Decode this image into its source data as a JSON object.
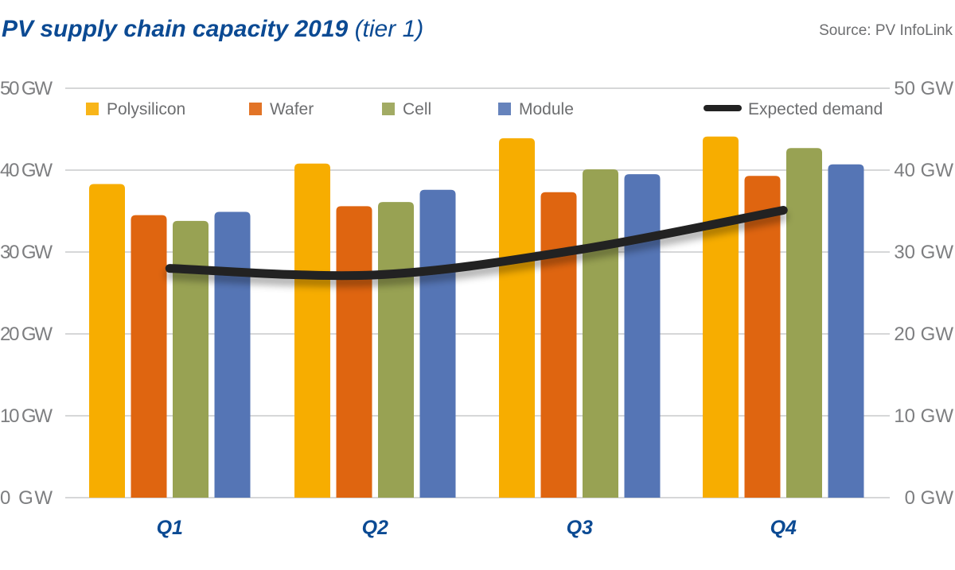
{
  "chart_data": {
    "type": "bar",
    "title": "PV supply chain capacity 2019",
    "subtitle": "(tier 1)",
    "source": "Source: PV InfoLink",
    "categories": [
      "Q1",
      "Q2",
      "Q3",
      "Q4"
    ],
    "ylim": [
      0,
      50
    ],
    "yticks": [
      "0 GW",
      "10 GW",
      "20 GW",
      "30 GW",
      "40 GW",
      "50 GW"
    ],
    "ytick_values": [
      0,
      10,
      20,
      30,
      40,
      50
    ],
    "unit": "GW",
    "grid": true,
    "legend_placement": "top",
    "series": [
      {
        "name": "Polysilicon",
        "color": "#f7ad00",
        "values": [
          38.3,
          40.8,
          43.9,
          44.1
        ]
      },
      {
        "name": "Wafer",
        "color": "#df6510",
        "values": [
          34.5,
          35.6,
          37.3,
          39.3
        ]
      },
      {
        "name": "Cell",
        "color": "#98a253",
        "values": [
          33.8,
          36.1,
          40.1,
          42.7
        ]
      },
      {
        "name": "Module",
        "color": "#5575b5",
        "values": [
          34.9,
          37.6,
          39.5,
          40.7
        ]
      }
    ],
    "line_series": {
      "name": "Expected demand",
      "type": "line",
      "color": "#222222",
      "values": [
        28.0,
        27.2,
        30.3,
        35.1
      ]
    }
  }
}
